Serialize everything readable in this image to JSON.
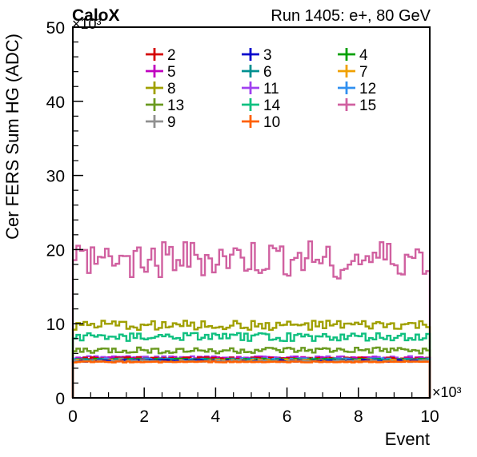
{
  "chart_data": {
    "type": "line",
    "title_left": "CaloX",
    "title_right": "Run 1405: e+, 80 GeV",
    "xlabel": "Event",
    "ylabel": "Cer FERS Sum HG (ADC)",
    "x_multiplier": "×10³",
    "y_multiplier": "×10³",
    "xlim": [
      0,
      10
    ],
    "ylim": [
      0,
      50
    ],
    "x_ticks": [
      0,
      2,
      4,
      6,
      8,
      10
    ],
    "y_ticks": [
      0,
      10,
      20,
      30,
      40,
      50
    ],
    "bins": 100,
    "series": [
      {
        "name": "2",
        "color": "#d50000",
        "mean": 5.3,
        "amp": 0.12,
        "values": []
      },
      {
        "name": "3",
        "color": "#0000cc",
        "mean": 5.0,
        "amp": 0.1,
        "values": []
      },
      {
        "name": "4",
        "color": "#00a000",
        "mean": 5.15,
        "amp": 0.1,
        "values": []
      },
      {
        "name": "5",
        "color": "#c000c0",
        "mean": 5.35,
        "amp": 0.12,
        "values": []
      },
      {
        "name": "6",
        "color": "#009090",
        "mean": 5.1,
        "amp": 0.1,
        "values": []
      },
      {
        "name": "7",
        "color": "#f0a000",
        "mean": 5.05,
        "amp": 0.1,
        "values": []
      },
      {
        "name": "8",
        "color": "#a0a000",
        "mean": 9.8,
        "amp": 0.45,
        "values": []
      },
      {
        "name": "11",
        "color": "#a040f0",
        "mean": 5.45,
        "amp": 0.12,
        "values": []
      },
      {
        "name": "12",
        "color": "#3090f0",
        "mean": 5.2,
        "amp": 0.1,
        "values": []
      },
      {
        "name": "13",
        "color": "#6a9a20",
        "mean": 6.4,
        "amp": 0.3,
        "values": []
      },
      {
        "name": "14",
        "color": "#10c080",
        "mean": 8.2,
        "amp": 0.4,
        "values": []
      },
      {
        "name": "15",
        "color": "#d060a0",
        "mean": 18.6,
        "amp": 1.8,
        "values": []
      },
      {
        "name": "9",
        "color": "#909090",
        "mean": 4.95,
        "amp": 0.08,
        "values": []
      },
      {
        "name": "10",
        "color": "#ff6000",
        "mean": 4.85,
        "amp": 0.05,
        "values": []
      }
    ]
  },
  "legend_columns": [
    [
      "2",
      "5",
      "8",
      "13",
      "9"
    ],
    [
      "3",
      "6",
      "11",
      "14",
      "10"
    ],
    [
      "4",
      "7",
      "12",
      "15"
    ]
  ]
}
